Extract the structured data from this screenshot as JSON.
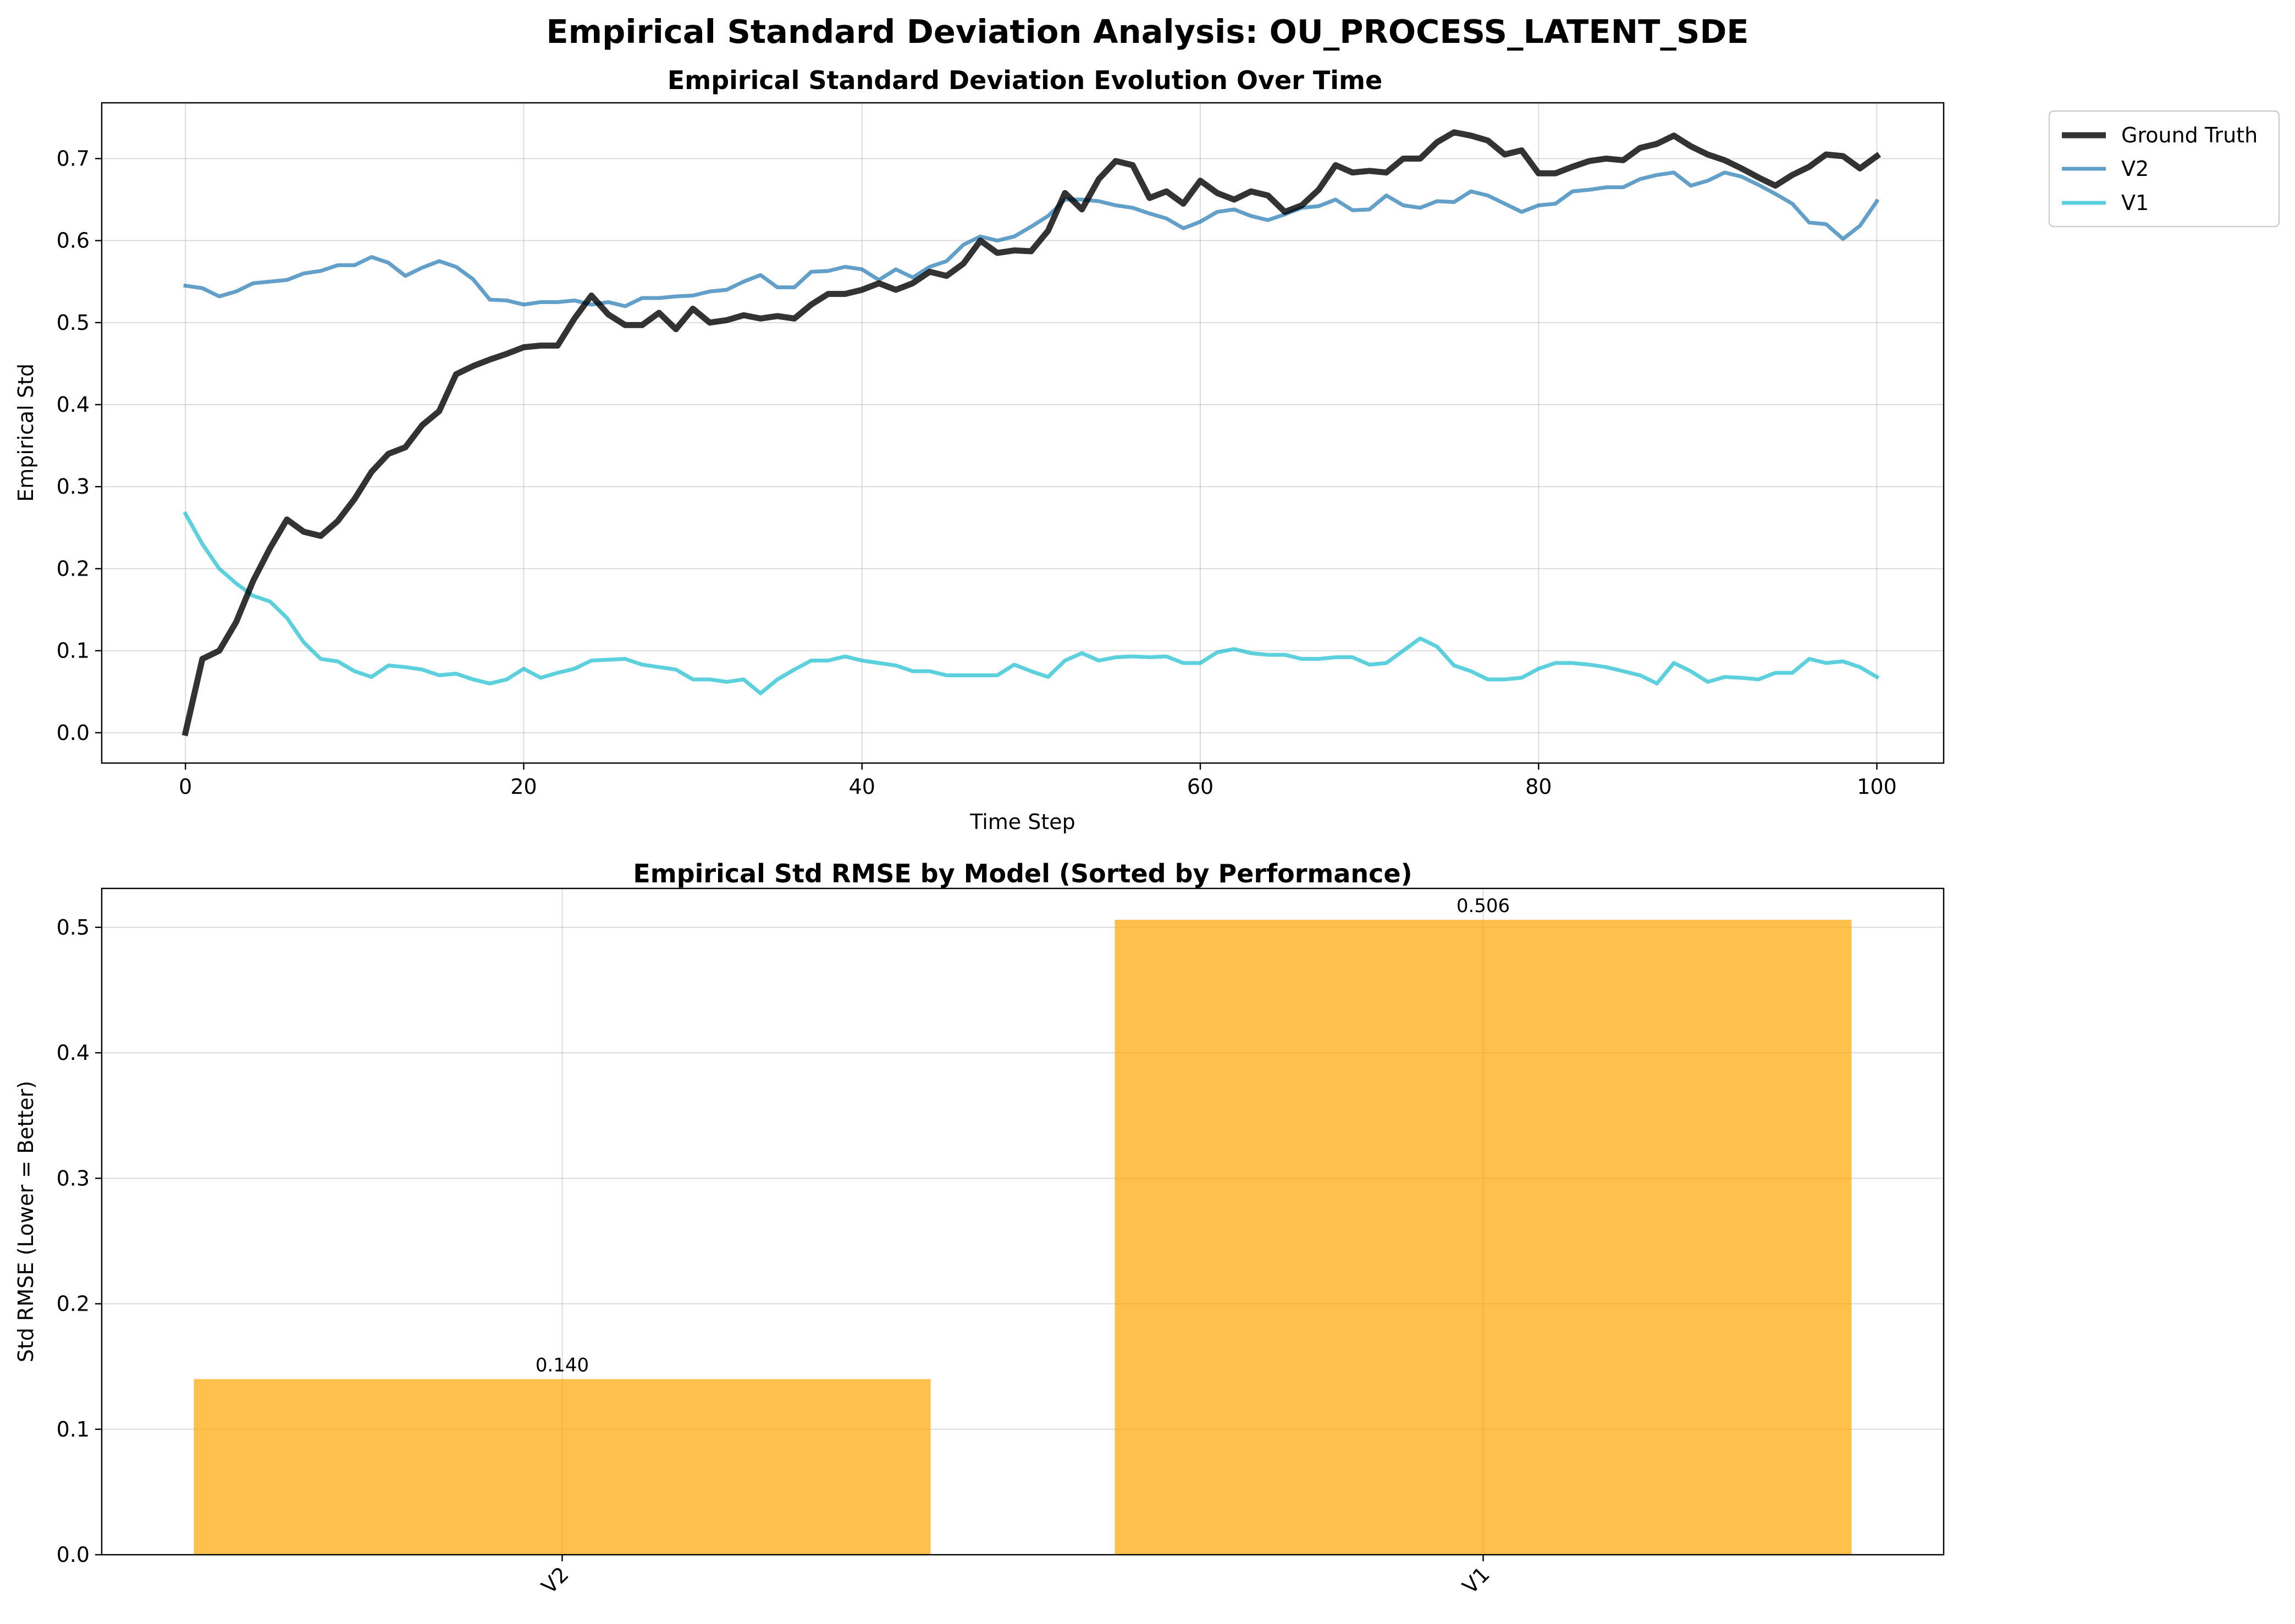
{
  "figure": {
    "title": "Empirical Standard Deviation Analysis: OU_PROCESS_LATENT_SDE"
  },
  "colors": {
    "ground_truth": "#000000",
    "v2": "#1f77b4",
    "v1": "#17becf",
    "bar": "#FFA500",
    "grid": "#b0b0b0"
  },
  "chart_data": [
    {
      "type": "line",
      "title": "Empirical Standard Deviation Evolution Over Time",
      "xlabel": "Time Step",
      "ylabel": "Empirical Std",
      "xlim": [
        -4.95,
        103.95
      ],
      "ylim": [
        -0.037,
        0.768
      ],
      "xticks": [
        0,
        20,
        40,
        60,
        80,
        100
      ],
      "yticks": [
        0.0,
        0.1,
        0.2,
        0.3,
        0.4,
        0.5,
        0.6,
        0.7
      ],
      "grid": true,
      "legend": {
        "placement": "outside-top-right",
        "entries": [
          "Ground Truth",
          "V2",
          "V1"
        ]
      },
      "series": [
        {
          "name": "Ground Truth",
          "values": [
            0.0,
            0.09,
            0.1,
            0.135,
            0.185,
            0.225,
            0.26,
            0.245,
            0.24,
            0.258,
            0.285,
            0.318,
            0.34,
            0.348,
            0.375,
            0.392,
            0.437,
            0.447,
            0.455,
            0.462,
            0.47,
            0.472,
            0.472,
            0.505,
            0.533,
            0.51,
            0.497,
            0.497,
            0.512,
            0.492,
            0.517,
            0.5,
            0.503,
            0.509,
            0.505,
            0.508,
            0.505,
            0.522,
            0.535,
            0.535,
            0.54,
            0.548,
            0.54,
            0.548,
            0.562,
            0.557,
            0.572,
            0.6,
            0.585,
            0.588,
            0.587,
            0.612,
            0.658,
            0.638,
            0.675,
            0.697,
            0.692,
            0.652,
            0.66,
            0.645,
            0.673,
            0.658,
            0.65,
            0.66,
            0.655,
            0.635,
            0.643,
            0.662,
            0.692,
            0.683,
            0.685,
            0.683,
            0.7,
            0.7,
            0.72,
            0.732,
            0.728,
            0.722,
            0.705,
            0.71,
            0.682,
            0.682,
            0.69,
            0.697,
            0.7,
            0.698,
            0.713,
            0.718,
            0.728,
            0.715,
            0.705,
            0.698,
            0.688,
            0.677,
            0.667,
            0.68,
            0.69,
            0.705,
            0.703,
            0.688,
            0.703
          ]
        },
        {
          "name": "V2",
          "values": [
            0.545,
            0.542,
            0.532,
            0.538,
            0.548,
            0.55,
            0.552,
            0.56,
            0.563,
            0.57,
            0.57,
            0.58,
            0.573,
            0.557,
            0.567,
            0.575,
            0.568,
            0.553,
            0.528,
            0.527,
            0.522,
            0.525,
            0.525,
            0.527,
            0.522,
            0.525,
            0.52,
            0.53,
            0.53,
            0.532,
            0.533,
            0.538,
            0.54,
            0.55,
            0.558,
            0.543,
            0.543,
            0.562,
            0.563,
            0.568,
            0.565,
            0.552,
            0.565,
            0.555,
            0.568,
            0.575,
            0.595,
            0.605,
            0.6,
            0.605,
            0.617,
            0.63,
            0.65,
            0.65,
            0.648,
            0.643,
            0.64,
            0.633,
            0.627,
            0.615,
            0.623,
            0.635,
            0.638,
            0.63,
            0.625,
            0.632,
            0.64,
            0.642,
            0.65,
            0.637,
            0.638,
            0.655,
            0.643,
            0.64,
            0.648,
            0.647,
            0.66,
            0.655,
            0.645,
            0.635,
            0.643,
            0.645,
            0.66,
            0.662,
            0.665,
            0.665,
            0.675,
            0.68,
            0.683,
            0.667,
            0.673,
            0.683,
            0.678,
            0.668,
            0.657,
            0.645,
            0.622,
            0.62,
            0.602,
            0.618,
            0.648
          ]
        },
        {
          "name": "V1",
          "values": [
            0.267,
            0.23,
            0.2,
            0.182,
            0.167,
            0.16,
            0.14,
            0.11,
            0.09,
            0.087,
            0.075,
            0.068,
            0.082,
            0.08,
            0.077,
            0.07,
            0.072,
            0.065,
            0.06,
            0.065,
            0.078,
            0.067,
            0.073,
            0.078,
            0.088,
            0.089,
            0.09,
            0.083,
            0.08,
            0.077,
            0.065,
            0.065,
            0.062,
            0.065,
            0.048,
            0.065,
            0.077,
            0.088,
            0.088,
            0.093,
            0.088,
            0.085,
            0.082,
            0.075,
            0.075,
            0.07,
            0.07,
            0.07,
            0.07,
            0.083,
            0.075,
            0.068,
            0.088,
            0.097,
            0.088,
            0.092,
            0.093,
            0.092,
            0.093,
            0.085,
            0.085,
            0.098,
            0.102,
            0.097,
            0.095,
            0.095,
            0.09,
            0.09,
            0.092,
            0.092,
            0.083,
            0.085,
            0.1,
            0.115,
            0.105,
            0.082,
            0.075,
            0.065,
            0.065,
            0.067,
            0.078,
            0.085,
            0.085,
            0.083,
            0.08,
            0.075,
            0.07,
            0.06,
            0.085,
            0.075,
            0.062,
            0.068,
            0.067,
            0.065,
            0.073,
            0.073,
            0.09,
            0.085,
            0.087,
            0.08,
            0.068
          ]
        }
      ]
    },
    {
      "type": "bar",
      "title": "Empirical Std RMSE by Model (Sorted by Performance)",
      "xlabel": "",
      "ylabel": "Std RMSE (Lower = Better)",
      "categories": [
        "V2",
        "V1"
      ],
      "values": [
        0.14,
        0.506
      ],
      "value_labels": [
        "0.140",
        "0.506"
      ],
      "ylim": [
        0,
        0.531
      ],
      "yticks": [
        0.0,
        0.1,
        0.2,
        0.3,
        0.4,
        0.5
      ],
      "grid": true
    }
  ]
}
